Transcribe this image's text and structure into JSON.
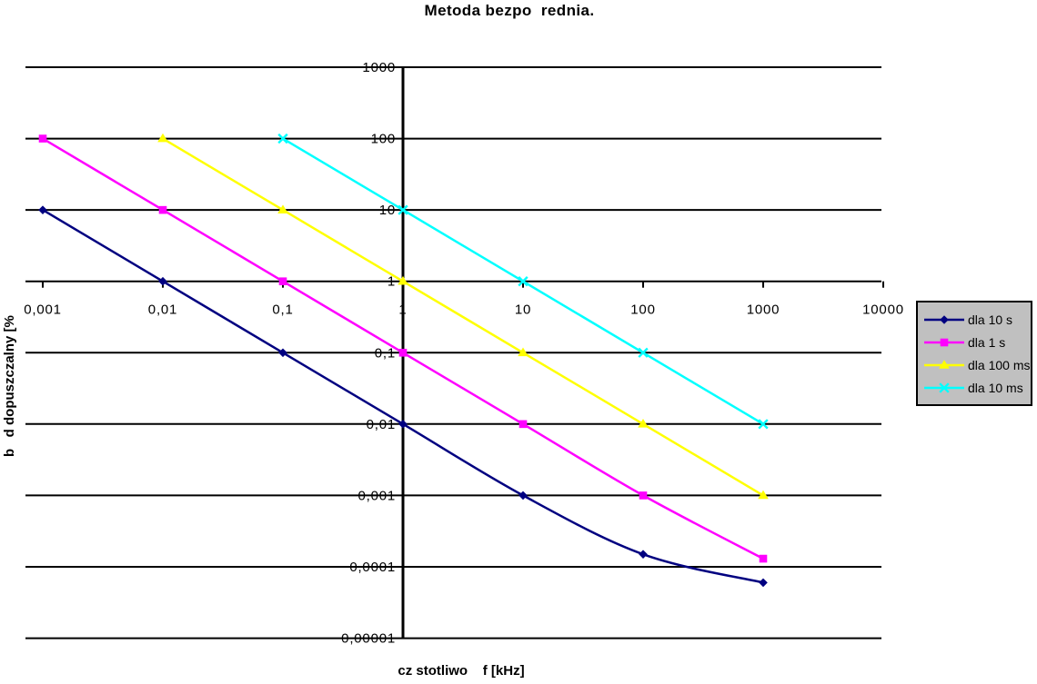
{
  "chart_data": {
    "type": "line",
    "title": "Metoda bezpo  rednia.",
    "xlabel": "cz stotliwo    f [kHz]",
    "ylabel": "b   d dopuszczalny [%",
    "x_scale": "log",
    "y_scale": "log",
    "xlim": [
      0.001,
      10000
    ],
    "ylim": [
      1e-05,
      1000
    ],
    "x_ticks": [
      "0,001",
      "0,01",
      "0,1",
      "1",
      "10",
      "100",
      "1000",
      "10000"
    ],
    "y_ticks": [
      "1000",
      "100",
      "10",
      "1",
      "0,1",
      "0,01",
      "0,001",
      "0,0001",
      "0,00001"
    ],
    "grid": "horizontal-only",
    "legend_position": "right",
    "series": [
      {
        "name": "dla 10 s",
        "color": "#000080",
        "marker": "diamond",
        "points": [
          [
            0.001,
            10
          ],
          [
            0.01,
            1
          ],
          [
            0.1,
            0.1
          ],
          [
            1,
            0.01
          ],
          [
            10,
            0.001
          ],
          [
            100,
            0.00015
          ],
          [
            1000,
            6e-05
          ]
        ]
      },
      {
        "name": "dla 1 s",
        "color": "#FF00FF",
        "marker": "square",
        "points": [
          [
            0.001,
            100
          ],
          [
            0.01,
            10
          ],
          [
            0.1,
            1
          ],
          [
            1,
            0.1
          ],
          [
            10,
            0.01
          ],
          [
            100,
            0.001
          ],
          [
            1000,
            0.00013
          ]
        ]
      },
      {
        "name": "dla 100 ms",
        "color": "#FFFF00",
        "marker": "triangle",
        "points": [
          [
            0.01,
            100
          ],
          [
            0.1,
            10
          ],
          [
            1,
            1
          ],
          [
            10,
            0.1
          ],
          [
            100,
            0.01
          ],
          [
            1000,
            0.001
          ]
        ]
      },
      {
        "name": "dla 10 ms",
        "color": "#00FFFF",
        "marker": "x",
        "points": [
          [
            0.1,
            100
          ],
          [
            1,
            10
          ],
          [
            10,
            1
          ],
          [
            100,
            0.1
          ],
          [
            1000,
            0.01
          ]
        ]
      }
    ]
  },
  "colors": {
    "background": "#FFFFFF",
    "grid": "#000000",
    "axis": "#000000",
    "legend_bg": "#C0C0C0",
    "legend_border": "#000000",
    "text": "#000000"
  }
}
